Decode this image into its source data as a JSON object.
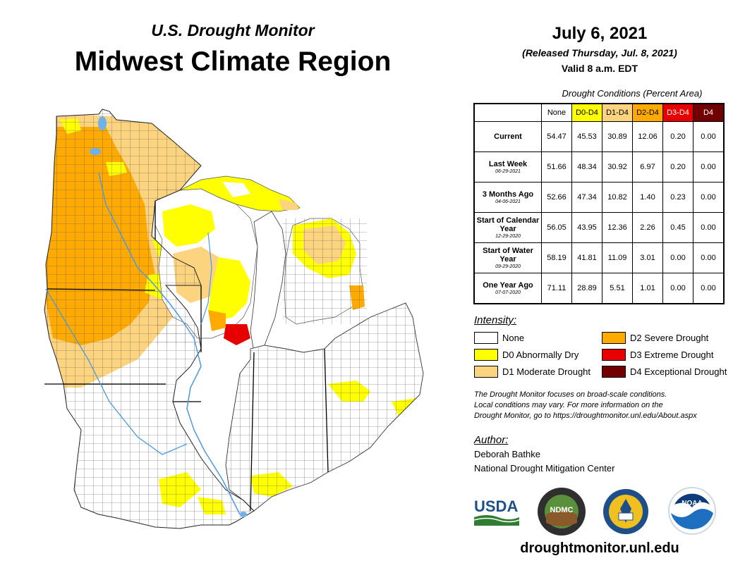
{
  "header": {
    "subtitle": "U.S. Drought Monitor",
    "title": "Midwest Climate Region",
    "date": "July 6, 2021",
    "released": "(Released Thursday, Jul. 8, 2021)",
    "valid": "Valid 8 a.m. EDT"
  },
  "table": {
    "title": "Drought Conditions (Percent Area)",
    "columns": [
      {
        "label": "None",
        "color": "#ffffff",
        "text": "#000000"
      },
      {
        "label": "D0-D4",
        "color": "#ffff00",
        "text": "#000000"
      },
      {
        "label": "D1-D4",
        "color": "#fcd37f",
        "text": "#000000"
      },
      {
        "label": "D2-D4",
        "color": "#ffaa00",
        "text": "#000000"
      },
      {
        "label": "D3-D4",
        "color": "#e60000",
        "text": "#ffffff"
      },
      {
        "label": "D4",
        "color": "#730000",
        "text": "#ffffff"
      }
    ],
    "rows": [
      {
        "label": "Current",
        "sublabel": "",
        "values": [
          "54.47",
          "45.53",
          "30.89",
          "12.06",
          "0.20",
          "0.00"
        ]
      },
      {
        "label": "Last Week",
        "sublabel": "06-29-2021",
        "values": [
          "51.66",
          "48.34",
          "30.92",
          "6.97",
          "0.20",
          "0.00"
        ]
      },
      {
        "label": "3 Months Ago",
        "sublabel": "04-06-2021",
        "values": [
          "52.66",
          "47.34",
          "10.82",
          "1.40",
          "0.23",
          "0.00"
        ]
      },
      {
        "label": "Start of Calendar Year",
        "sublabel": "12-29-2020",
        "values": [
          "56.05",
          "43.95",
          "12.36",
          "2.26",
          "0.45",
          "0.00"
        ]
      },
      {
        "label": "Start of Water Year",
        "sublabel": "09-29-2020",
        "values": [
          "58.19",
          "41.81",
          "11.09",
          "3.01",
          "0.00",
          "0.00"
        ]
      },
      {
        "label": "One Year Ago",
        "sublabel": "07-07-2020",
        "values": [
          "71.11",
          "28.89",
          "5.51",
          "1.01",
          "0.00",
          "0.00"
        ]
      }
    ]
  },
  "legend": {
    "title": "Intensity:",
    "items": [
      {
        "label": "None",
        "color": "#ffffff"
      },
      {
        "label": "D0 Abnormally Dry",
        "color": "#ffff00"
      },
      {
        "label": "D1 Moderate Drought",
        "color": "#fcd37f"
      },
      {
        "label": "D2 Severe Drought",
        "color": "#ffaa00"
      },
      {
        "label": "D3 Extreme Drought",
        "color": "#e60000"
      },
      {
        "label": "D4 Exceptional Drought",
        "color": "#730000"
      }
    ]
  },
  "note": {
    "line1": "The Drought Monitor focuses on broad-scale conditions.",
    "line2": "Local conditions may vary. For more information on the",
    "line3": "Drought Monitor, go to https://droughtmonitor.unl.edu/About.aspx"
  },
  "author": {
    "heading": "Author:",
    "name": "Deborah Bathke",
    "org": "National Drought Mitigation Center"
  },
  "logos": {
    "usda": "USDA",
    "ndmc": "NDMC",
    "noaa": "NOAA"
  },
  "footer": {
    "url": "droughtmonitor.unl.edu"
  }
}
